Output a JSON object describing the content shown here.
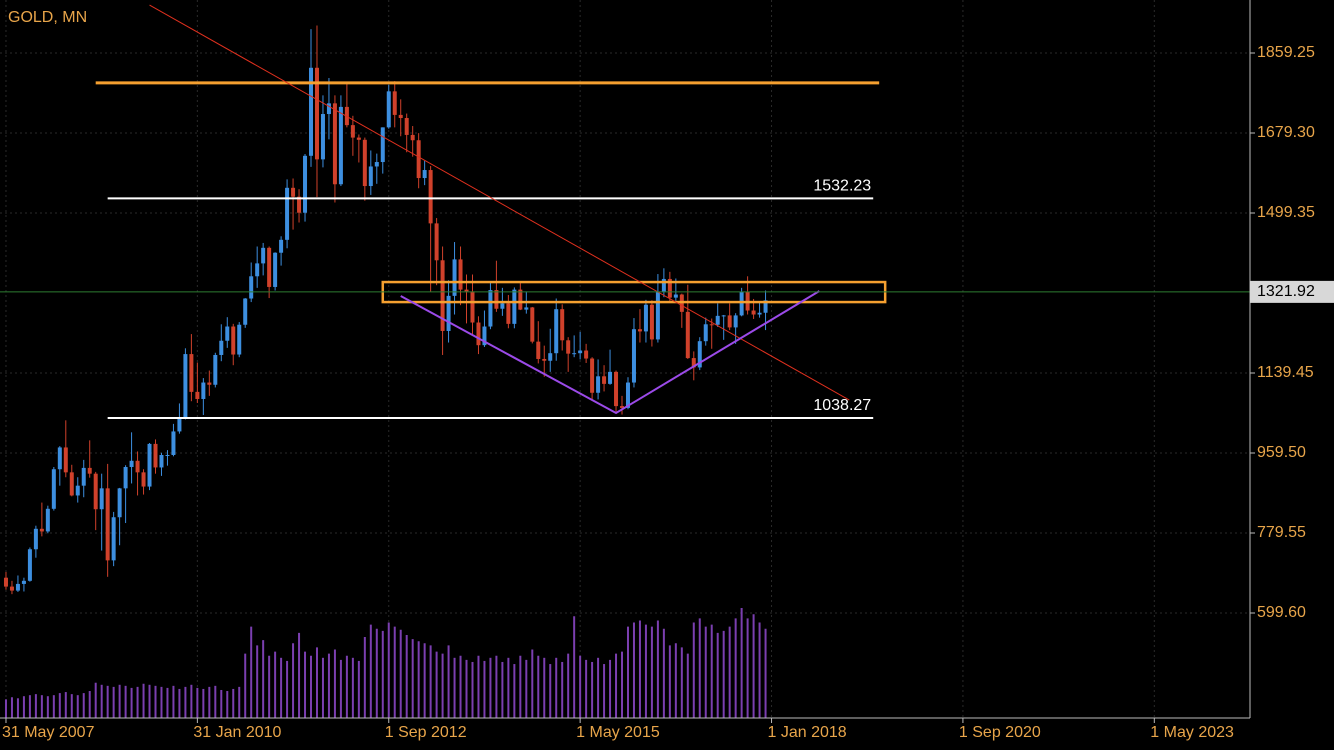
{
  "chart_data": {
    "type": "candlestick",
    "title": "GOLD, MN",
    "up_color": "#3d8fe0",
    "down_color": "#d0412b",
    "volume_color": "#7b3fb0",
    "axis_color": "#e8a54a",
    "grid": true,
    "xlim": [
      "2007-04",
      "2024-09"
    ],
    "xticks": [
      {
        "value": "2007-05",
        "label": "31 May 2007"
      },
      {
        "value": "2010-01",
        "label": "31 Jan 2010"
      },
      {
        "value": "2012-09",
        "label": "1 Sep 2012"
      },
      {
        "value": "2015-05",
        "label": "1 May 2015"
      },
      {
        "value": "2018-01",
        "label": "1 Jan 2018"
      },
      {
        "value": "2020-09",
        "label": "1 Sep 2020"
      },
      {
        "value": "2023-05",
        "label": "1 May 2023"
      }
    ],
    "ylim": [
      363.42,
      1978.47
    ],
    "yticks": [
      1859.25,
      {
        "value": 1679.3,
        "label": "1679.30"
      },
      1499.35,
      1139.45,
      {
        "value": 959.5,
        "label": "959.50"
      },
      779.55,
      {
        "value": 599.6,
        "label": "599.60"
      }
    ],
    "last_price": 1321.92,
    "last_price_color": "#2e7d32",
    "x": [
      "2007-05",
      "2007-06",
      "2007-07",
      "2007-08",
      "2007-09",
      "2007-10",
      "2007-11",
      "2007-12",
      "2008-01",
      "2008-02",
      "2008-03",
      "2008-04",
      "2008-05",
      "2008-06",
      "2008-07",
      "2008-08",
      "2008-09",
      "2008-10",
      "2008-11",
      "2008-12",
      "2009-01",
      "2009-02",
      "2009-03",
      "2009-04",
      "2009-05",
      "2009-06",
      "2009-07",
      "2009-08",
      "2009-09",
      "2009-10",
      "2009-11",
      "2009-12",
      "2010-01",
      "2010-02",
      "2010-03",
      "2010-04",
      "2010-05",
      "2010-06",
      "2010-07",
      "2010-08",
      "2010-09",
      "2010-10",
      "2010-11",
      "2010-12",
      "2011-01",
      "2011-02",
      "2011-03",
      "2011-04",
      "2011-05",
      "2011-06",
      "2011-07",
      "2011-08",
      "2011-09",
      "2011-10",
      "2011-11",
      "2011-12",
      "2012-01",
      "2012-02",
      "2012-03",
      "2012-04",
      "2012-05",
      "2012-06",
      "2012-07",
      "2012-08",
      "2012-09",
      "2012-10",
      "2012-11",
      "2012-12",
      "2013-01",
      "2013-02",
      "2013-03",
      "2013-04",
      "2013-05",
      "2013-06",
      "2013-07",
      "2013-08",
      "2013-09",
      "2013-10",
      "2013-11",
      "2013-12",
      "2014-01",
      "2014-02",
      "2014-03",
      "2014-04",
      "2014-05",
      "2014-06",
      "2014-07",
      "2014-08",
      "2014-09",
      "2014-10",
      "2014-11",
      "2014-12",
      "2015-01",
      "2015-02",
      "2015-03",
      "2015-04",
      "2015-05",
      "2015-06",
      "2015-07",
      "2015-08",
      "2015-09",
      "2015-10",
      "2015-11",
      "2015-12",
      "2016-01",
      "2016-02",
      "2016-03",
      "2016-04",
      "2016-05",
      "2016-06",
      "2016-07",
      "2016-08",
      "2016-09",
      "2016-10",
      "2016-11",
      "2016-12",
      "2017-01",
      "2017-02",
      "2017-03",
      "2017-04",
      "2017-05",
      "2017-06",
      "2017-07",
      "2017-08",
      "2017-09",
      "2017-10",
      "2017-11",
      "2017-12"
    ],
    "ohlc": [
      [
        679,
        692,
        652,
        659
      ],
      [
        659,
        672,
        642,
        650
      ],
      [
        650,
        684,
        647,
        665
      ],
      [
        665,
        679,
        648,
        672
      ],
      [
        672,
        747,
        670,
        743
      ],
      [
        743,
        796,
        724,
        789
      ],
      [
        789,
        848,
        772,
        783
      ],
      [
        783,
        841,
        779,
        834
      ],
      [
        834,
        928,
        830,
        923
      ],
      [
        923,
        975,
        886,
        972
      ],
      [
        972,
        1033,
        905,
        916
      ],
      [
        916,
        933,
        862,
        864
      ],
      [
        864,
        905,
        848,
        886
      ],
      [
        886,
        944,
        860,
        926
      ],
      [
        926,
        988,
        904,
        913
      ],
      [
        913,
        917,
        786,
        833
      ],
      [
        833,
        913,
        740,
        880
      ],
      [
        880,
        935,
        681,
        718
      ],
      [
        718,
        827,
        705,
        815
      ],
      [
        815,
        881,
        752,
        880
      ],
      [
        880,
        932,
        802,
        928
      ],
      [
        928,
        1006,
        891,
        942
      ],
      [
        942,
        963,
        864,
        916
      ],
      [
        916,
        923,
        866,
        884
      ],
      [
        884,
        982,
        876,
        980
      ],
      [
        980,
        990,
        913,
        927
      ],
      [
        927,
        960,
        908,
        955
      ],
      [
        955,
        966,
        931,
        955
      ],
      [
        955,
        1025,
        952,
        1008
      ],
      [
        1008,
        1071,
        1003,
        1040
      ],
      [
        1040,
        1195,
        1035,
        1182
      ],
      [
        1182,
        1227,
        1076,
        1097
      ],
      [
        1097,
        1163,
        1072,
        1081
      ],
      [
        1081,
        1128,
        1045,
        1118
      ],
      [
        1118,
        1145,
        1088,
        1113
      ],
      [
        1113,
        1185,
        1107,
        1180
      ],
      [
        1180,
        1249,
        1166,
        1212
      ],
      [
        1212,
        1265,
        1196,
        1244
      ],
      [
        1244,
        1250,
        1157,
        1181
      ],
      [
        1181,
        1254,
        1175,
        1248
      ],
      [
        1248,
        1308,
        1241,
        1307
      ],
      [
        1307,
        1388,
        1299,
        1357
      ],
      [
        1357,
        1424,
        1331,
        1386
      ],
      [
        1386,
        1432,
        1359,
        1421
      ],
      [
        1421,
        1424,
        1308,
        1333
      ],
      [
        1333,
        1411,
        1325,
        1410
      ],
      [
        1410,
        1447,
        1381,
        1439
      ],
      [
        1439,
        1575,
        1420,
        1556
      ],
      [
        1556,
        1577,
        1462,
        1536
      ],
      [
        1536,
        1553,
        1478,
        1500
      ],
      [
        1500,
        1632,
        1480,
        1628
      ],
      [
        1628,
        1913,
        1603,
        1826
      ],
      [
        1826,
        1921,
        1535,
        1620
      ],
      [
        1620,
        1764,
        1602,
        1722
      ],
      [
        1722,
        1803,
        1665,
        1746
      ],
      [
        1746,
        1764,
        1523,
        1564
      ],
      [
        1564,
        1764,
        1560,
        1738
      ],
      [
        1738,
        1791,
        1692,
        1697
      ],
      [
        1697,
        1718,
        1628,
        1669
      ],
      [
        1669,
        1676,
        1613,
        1664
      ],
      [
        1664,
        1669,
        1527,
        1560
      ],
      [
        1560,
        1640,
        1540,
        1604
      ],
      [
        1604,
        1633,
        1565,
        1614
      ],
      [
        1614,
        1692,
        1588,
        1692
      ],
      [
        1692,
        1788,
        1689,
        1773
      ],
      [
        1773,
        1796,
        1692,
        1720
      ],
      [
        1720,
        1755,
        1672,
        1713
      ],
      [
        1713,
        1723,
        1636,
        1675
      ],
      [
        1675,
        1695,
        1626,
        1663
      ],
      [
        1663,
        1679,
        1555,
        1578
      ],
      [
        1578,
        1617,
        1562,
        1596
      ],
      [
        1596,
        1605,
        1322,
        1476
      ],
      [
        1476,
        1488,
        1337,
        1393
      ],
      [
        1393,
        1424,
        1180,
        1234
      ],
      [
        1234,
        1348,
        1208,
        1313
      ],
      [
        1313,
        1434,
        1271,
        1395
      ],
      [
        1395,
        1424,
        1292,
        1327
      ],
      [
        1327,
        1361,
        1251,
        1323
      ],
      [
        1323,
        1361,
        1227,
        1253
      ],
      [
        1253,
        1267,
        1182,
        1202
      ],
      [
        1202,
        1280,
        1198,
        1244
      ],
      [
        1244,
        1345,
        1238,
        1326
      ],
      [
        1326,
        1392,
        1277,
        1284
      ],
      [
        1284,
        1331,
        1268,
        1296
      ],
      [
        1296,
        1315,
        1240,
        1250
      ],
      [
        1250,
        1332,
        1240,
        1327
      ],
      [
        1327,
        1345,
        1281,
        1282
      ],
      [
        1282,
        1323,
        1273,
        1287
      ],
      [
        1287,
        1288,
        1206,
        1210
      ],
      [
        1210,
        1256,
        1161,
        1171
      ],
      [
        1171,
        1201,
        1131,
        1167
      ],
      [
        1167,
        1239,
        1142,
        1184
      ],
      [
        1184,
        1307,
        1167,
        1283
      ],
      [
        1283,
        1294,
        1190,
        1213
      ],
      [
        1213,
        1220,
        1142,
        1183
      ],
      [
        1183,
        1224,
        1175,
        1184
      ],
      [
        1184,
        1232,
        1170,
        1190
      ],
      [
        1190,
        1205,
        1162,
        1172
      ],
      [
        1172,
        1175,
        1077,
        1095
      ],
      [
        1095,
        1170,
        1080,
        1132
      ],
      [
        1132,
        1157,
        1098,
        1115
      ],
      [
        1115,
        1192,
        1113,
        1142
      ],
      [
        1142,
        1145,
        1052,
        1065
      ],
      [
        1065,
        1088,
        1046,
        1061
      ],
      [
        1061,
        1130,
        1058,
        1118
      ],
      [
        1118,
        1263,
        1107,
        1238
      ],
      [
        1238,
        1283,
        1208,
        1233
      ],
      [
        1233,
        1304,
        1208,
        1293
      ],
      [
        1293,
        1303,
        1199,
        1215
      ],
      [
        1215,
        1362,
        1208,
        1322
      ],
      [
        1322,
        1375,
        1310,
        1351
      ],
      [
        1351,
        1367,
        1301,
        1309
      ],
      [
        1309,
        1352,
        1302,
        1316
      ],
      [
        1316,
        1318,
        1241,
        1277
      ],
      [
        1277,
        1338,
        1171,
        1173
      ],
      [
        1173,
        1188,
        1123,
        1152
      ],
      [
        1152,
        1220,
        1146,
        1211
      ],
      [
        1211,
        1264,
        1201,
        1249
      ],
      [
        1249,
        1262,
        1194,
        1248
      ],
      [
        1248,
        1296,
        1243,
        1268
      ],
      [
        1268,
        1270,
        1214,
        1269
      ],
      [
        1269,
        1296,
        1236,
        1242
      ],
      [
        1242,
        1274,
        1205,
        1269
      ],
      [
        1269,
        1331,
        1267,
        1322
      ],
      [
        1322,
        1357,
        1271,
        1280
      ],
      [
        1280,
        1306,
        1261,
        1271
      ],
      [
        1271,
        1299,
        1264,
        1275
      ],
      [
        1275,
        1325,
        1236,
        1303
      ]
    ],
    "volume": [
      18,
      20,
      19,
      21,
      22,
      23,
      22,
      21,
      22,
      24,
      25,
      23,
      22,
      24,
      26,
      34,
      32,
      31,
      30,
      32,
      31,
      29,
      30,
      33,
      32,
      31,
      30,
      29,
      31,
      28,
      30,
      32,
      29,
      28,
      30,
      31,
      27,
      26,
      28,
      30,
      62,
      88,
      70,
      75,
      60,
      64,
      58,
      55,
      72,
      82,
      64,
      60,
      68,
      58,
      62,
      66,
      56,
      60,
      58,
      55,
      78,
      90,
      86,
      84,
      92,
      88,
      85,
      80,
      76,
      74,
      72,
      70,
      64,
      62,
      70,
      58,
      60,
      56,
      54,
      60,
      55,
      58,
      60,
      54,
      58,
      52,
      60,
      56,
      66,
      60,
      58,
      52,
      58,
      54,
      62,
      98,
      60,
      56,
      54,
      58,
      52,
      56,
      62,
      64,
      88,
      92,
      94,
      90,
      88,
      94,
      86,
      70,
      72,
      68,
      62,
      92,
      96,
      88,
      90,
      82,
      84,
      88,
      96,
      106,
      96,
      100,
      92,
      86
    ],
    "drawings": {
      "resistance": {
        "price": 1792,
        "from": "2008-08",
        "to": "2019-07",
        "color": "#f5a030"
      },
      "levels": [
        {
          "price": 1532.23,
          "from": "2008-10",
          "to": "2019-06",
          "color": "#ffffff"
        },
        {
          "price": 1038.27,
          "from": "2008-10",
          "to": "2019-06",
          "color": "#ffffff"
        }
      ],
      "box": {
        "top": 1344,
        "bottom": 1299,
        "from": "2012-08",
        "to": "2019-08",
        "color": "#f5a030"
      },
      "trendline": {
        "points": [
          {
            "x": "2009-05",
            "price": 1967
          },
          {
            "x": "2019-02",
            "price": 1078.7
          }
        ],
        "color": "#e0301e"
      },
      "pattern": {
        "points": [
          {
            "x": "2012-11",
            "price": 1312.6
          },
          {
            "x": "2015-11",
            "price": 1049.5
          },
          {
            "x": "2018-09",
            "price": 1323.9
          }
        ],
        "color": "#9b4ae8"
      }
    }
  }
}
